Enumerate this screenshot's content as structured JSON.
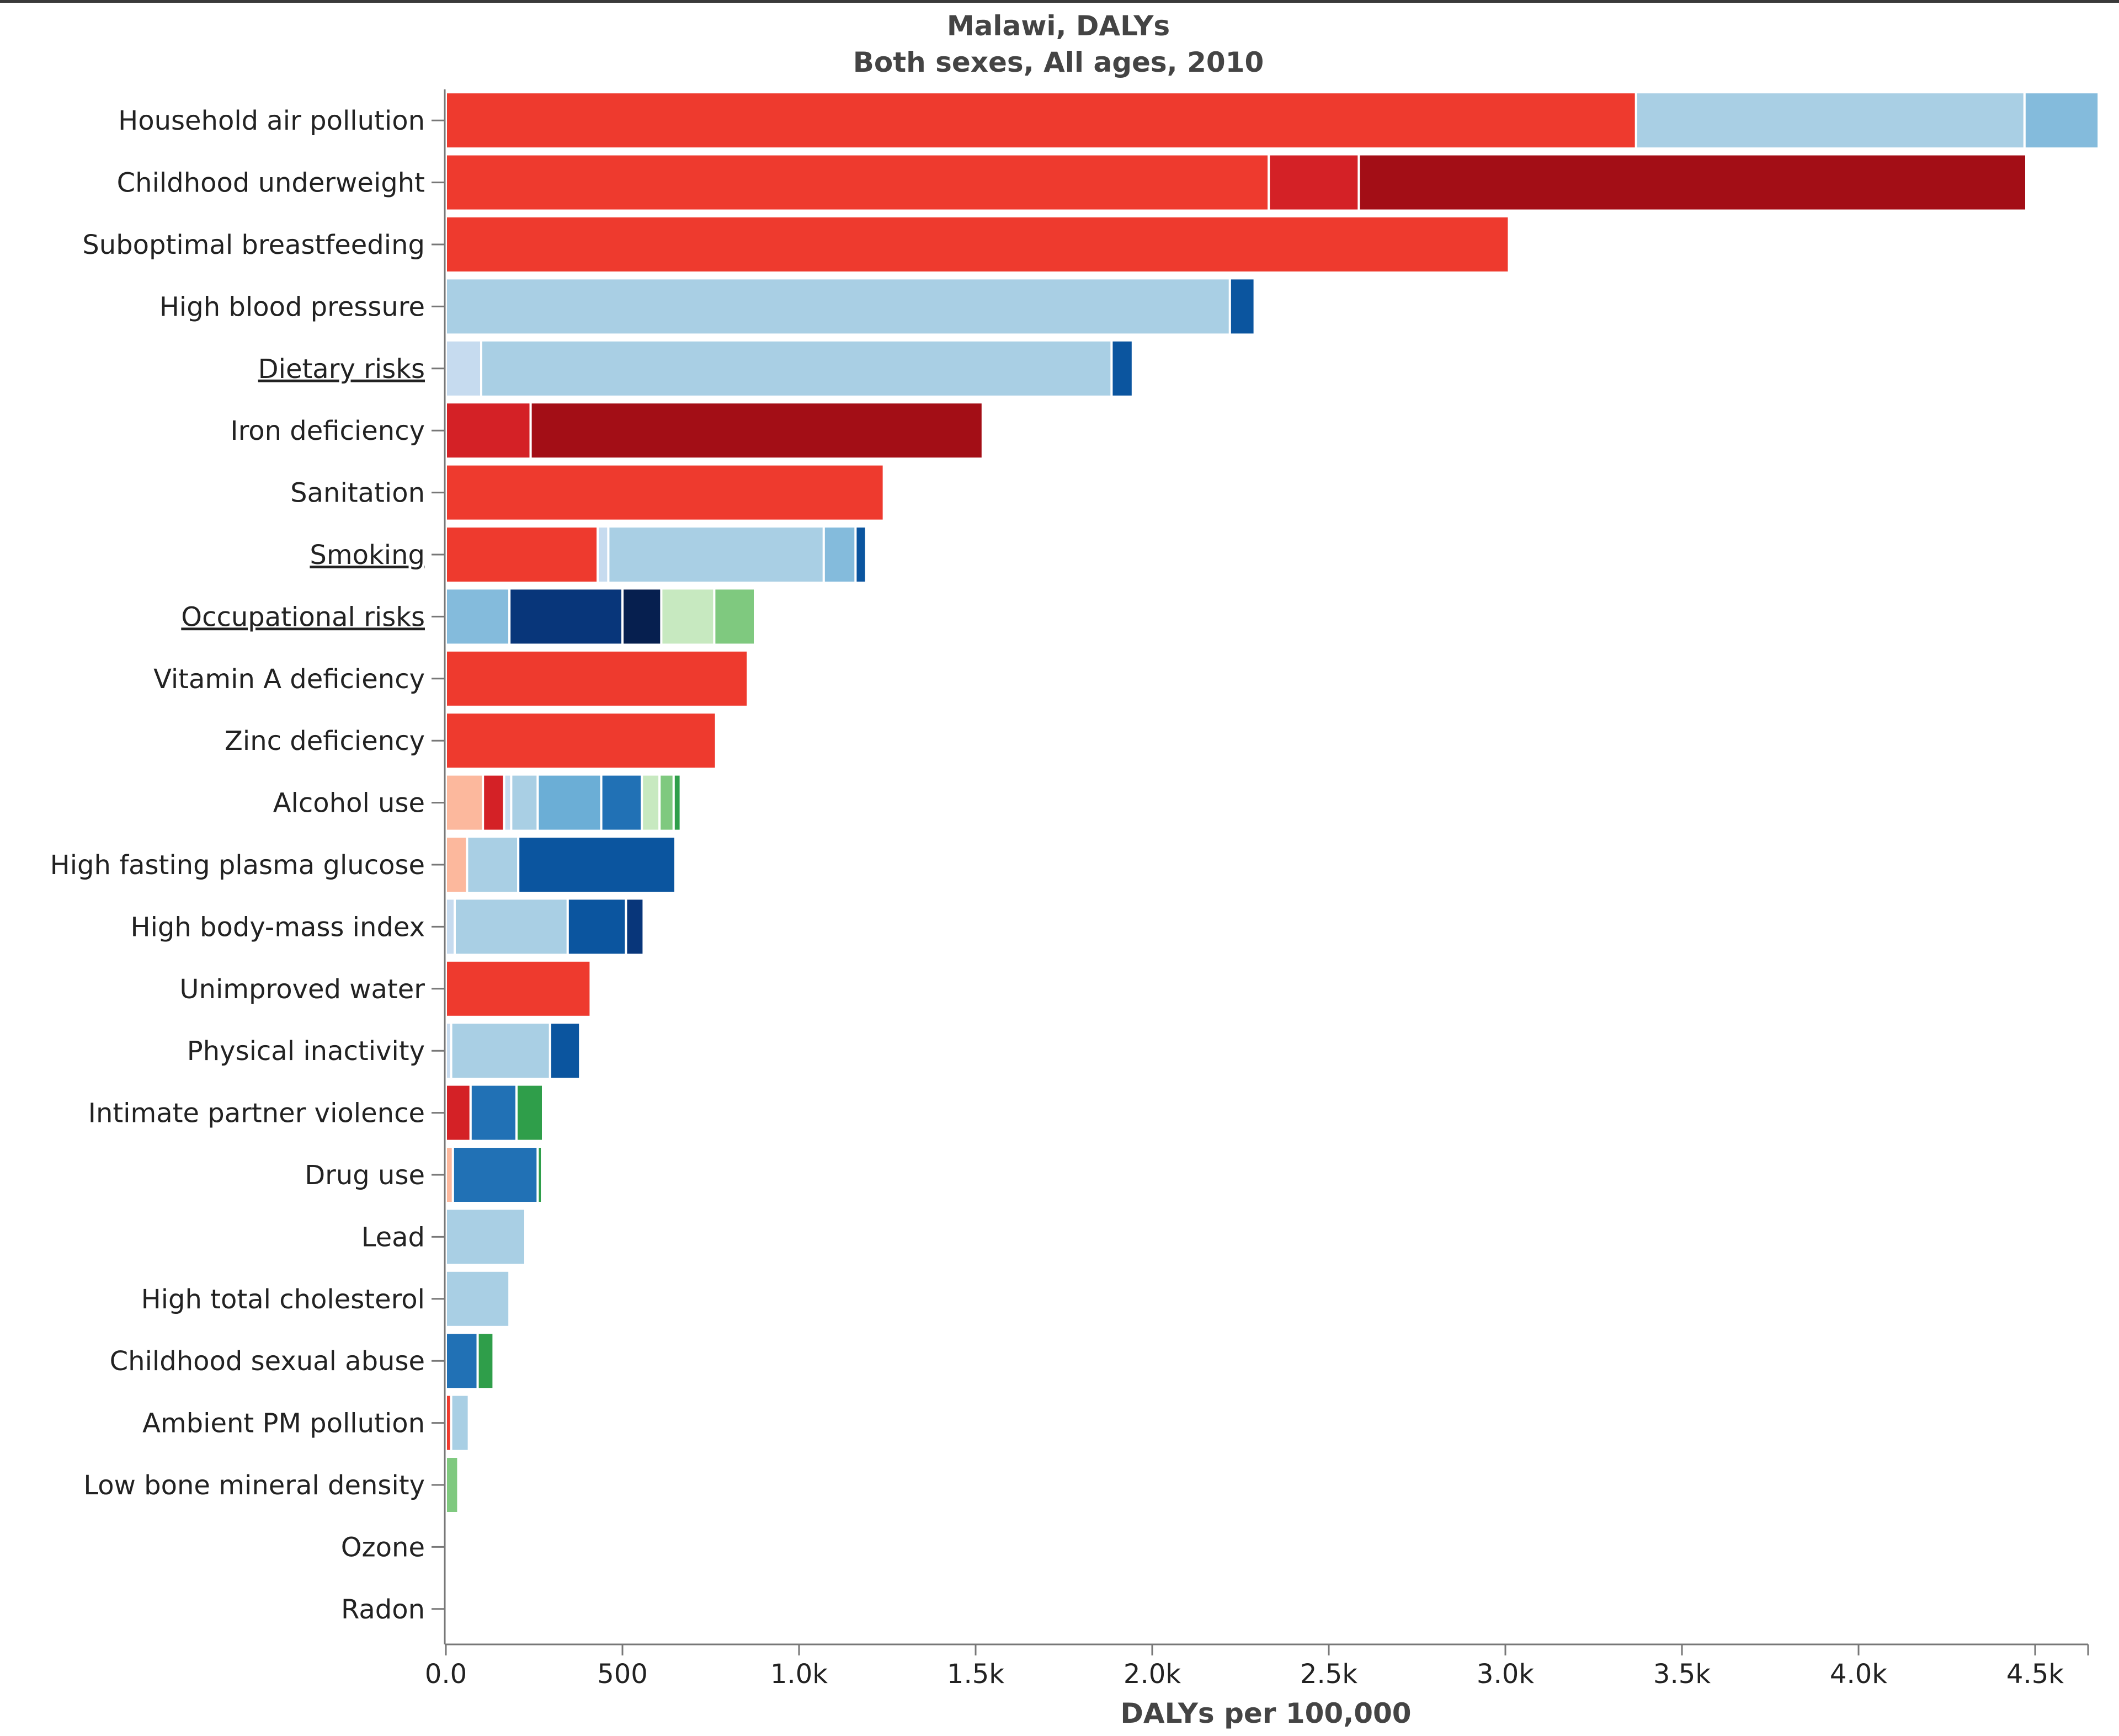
{
  "chart_data": {
    "type": "bar",
    "orientation": "horizontal",
    "stacked": true,
    "title": "Malawi, DALYs",
    "subtitle": "Both sexes, All ages, 2010",
    "xlabel": "DALYs per 100,000",
    "xlim": [
      0,
      4650
    ],
    "xticks": [
      0,
      500,
      1000,
      1500,
      2000,
      2500,
      3000,
      3500,
      4000,
      4500
    ],
    "xtick_labels": [
      "0.0",
      "500",
      "1.0k",
      "1.5k",
      "2.0k",
      "2.5k",
      "3.0k",
      "3.5k",
      "4.0k",
      "4.5k"
    ],
    "colors": {
      "red": "#ee3a2e",
      "red_mid": "#d42126",
      "dark_red": "#a30e16",
      "salmon": "#fcb89d",
      "pale_blue": "#c6dbef",
      "light_blue": "#a9cfe4",
      "sky_blue": "#84bbdc",
      "medium_blue": "#6baed6",
      "blue": "#2171b5",
      "deep_blue": "#0b559f",
      "navy": "#08367a",
      "darkest_navy": "#061f4f",
      "pale_green": "#c7e9c0",
      "light_green": "#7fc97f",
      "green": "#2f9e4a"
    },
    "categories": [
      {
        "label": "Household air pollution",
        "underlined": false,
        "segments": [
          {
            "value": 3370,
            "color": "red"
          },
          {
            "value": 1100,
            "color": "light_blue"
          },
          {
            "value": 210,
            "color": "sky_blue"
          }
        ]
      },
      {
        "label": "Childhood underweight",
        "underlined": false,
        "segments": [
          {
            "value": 2330,
            "color": "red"
          },
          {
            "value": 255,
            "color": "red_mid"
          },
          {
            "value": 1890,
            "color": "dark_red"
          }
        ]
      },
      {
        "label": "Suboptimal breastfeeding",
        "underlined": false,
        "segments": [
          {
            "value": 3010,
            "color": "red"
          }
        ]
      },
      {
        "label": "High blood pressure",
        "underlined": false,
        "segments": [
          {
            "value": 2220,
            "color": "light_blue"
          },
          {
            "value": 70,
            "color": "deep_blue"
          }
        ]
      },
      {
        "label": "Dietary risks",
        "underlined": true,
        "segments": [
          {
            "value": 100,
            "color": "pale_blue"
          },
          {
            "value": 1785,
            "color": "light_blue"
          },
          {
            "value": 60,
            "color": "deep_blue"
          }
        ]
      },
      {
        "label": "Iron deficiency",
        "underlined": false,
        "segments": [
          {
            "value": 240,
            "color": "red_mid"
          },
          {
            "value": 1280,
            "color": "dark_red"
          }
        ]
      },
      {
        "label": "Sanitation",
        "underlined": false,
        "segments": [
          {
            "value": 1240,
            "color": "red"
          }
        ]
      },
      {
        "label": "Smoking",
        "underlined": true,
        "segments": [
          {
            "value": 430,
            "color": "red"
          },
          {
            "value": 30,
            "color": "pale_blue"
          },
          {
            "value": 610,
            "color": "light_blue"
          },
          {
            "value": 90,
            "color": "sky_blue"
          },
          {
            "value": 30,
            "color": "deep_blue"
          }
        ]
      },
      {
        "label": "Occupational risks",
        "underlined": true,
        "segments": [
          {
            "value": 180,
            "color": "sky_blue"
          },
          {
            "value": 320,
            "color": "navy"
          },
          {
            "value": 110,
            "color": "darkest_navy"
          },
          {
            "value": 150,
            "color": "pale_green"
          },
          {
            "value": 115,
            "color": "light_green"
          }
        ]
      },
      {
        "label": "Vitamin A deficiency",
        "underlined": false,
        "segments": [
          {
            "value": 855,
            "color": "red"
          }
        ]
      },
      {
        "label": "Zinc deficiency",
        "underlined": false,
        "segments": [
          {
            "value": 765,
            "color": "red"
          }
        ]
      },
      {
        "label": "Alcohol use",
        "underlined": false,
        "segments": [
          {
            "value": 105,
            "color": "salmon"
          },
          {
            "value": 60,
            "color": "red_mid"
          },
          {
            "value": 20,
            "color": "pale_blue"
          },
          {
            "value": 75,
            "color": "light_blue"
          },
          {
            "value": 180,
            "color": "medium_blue"
          },
          {
            "value": 115,
            "color": "blue"
          },
          {
            "value": 50,
            "color": "pale_green"
          },
          {
            "value": 40,
            "color": "light_green"
          },
          {
            "value": 20,
            "color": "green"
          }
        ]
      },
      {
        "label": "High fasting plasma glucose",
        "underlined": false,
        "segments": [
          {
            "value": 60,
            "color": "salmon"
          },
          {
            "value": 145,
            "color": "light_blue"
          },
          {
            "value": 445,
            "color": "deep_blue"
          }
        ]
      },
      {
        "label": "High body-mass index",
        "underlined": false,
        "segments": [
          {
            "value": 25,
            "color": "pale_blue"
          },
          {
            "value": 320,
            "color": "light_blue"
          },
          {
            "value": 165,
            "color": "deep_blue"
          },
          {
            "value": 50,
            "color": "navy"
          }
        ]
      },
      {
        "label": "Unimproved water",
        "underlined": false,
        "segments": [
          {
            "value": 410,
            "color": "red"
          }
        ]
      },
      {
        "label": "Physical inactivity",
        "underlined": false,
        "segments": [
          {
            "value": 15,
            "color": "pale_blue"
          },
          {
            "value": 280,
            "color": "light_blue"
          },
          {
            "value": 85,
            "color": "deep_blue"
          }
        ]
      },
      {
        "label": "Intimate partner violence",
        "underlined": false,
        "segments": [
          {
            "value": 70,
            "color": "red_mid"
          },
          {
            "value": 130,
            "color": "blue"
          },
          {
            "value": 75,
            "color": "green"
          }
        ]
      },
      {
        "label": "Drug use",
        "underlined": false,
        "segments": [
          {
            "value": 20,
            "color": "salmon"
          },
          {
            "value": 240,
            "color": "blue"
          },
          {
            "value": 12,
            "color": "green"
          }
        ]
      },
      {
        "label": "Lead",
        "underlined": false,
        "segments": [
          {
            "value": 225,
            "color": "light_blue"
          }
        ]
      },
      {
        "label": "High total cholesterol",
        "underlined": false,
        "segments": [
          {
            "value": 180,
            "color": "light_blue"
          }
        ]
      },
      {
        "label": "Childhood sexual abuse",
        "underlined": false,
        "segments": [
          {
            "value": 90,
            "color": "blue"
          },
          {
            "value": 45,
            "color": "green"
          }
        ]
      },
      {
        "label": "Ambient PM pollution",
        "underlined": false,
        "segments": [
          {
            "value": 15,
            "color": "red"
          },
          {
            "value": 50,
            "color": "light_blue"
          }
        ]
      },
      {
        "label": "Low bone mineral density",
        "underlined": false,
        "segments": [
          {
            "value": 35,
            "color": "light_green"
          }
        ]
      },
      {
        "label": "Ozone",
        "underlined": false,
        "segments": []
      },
      {
        "label": "Radon",
        "underlined": false,
        "segments": []
      }
    ]
  }
}
